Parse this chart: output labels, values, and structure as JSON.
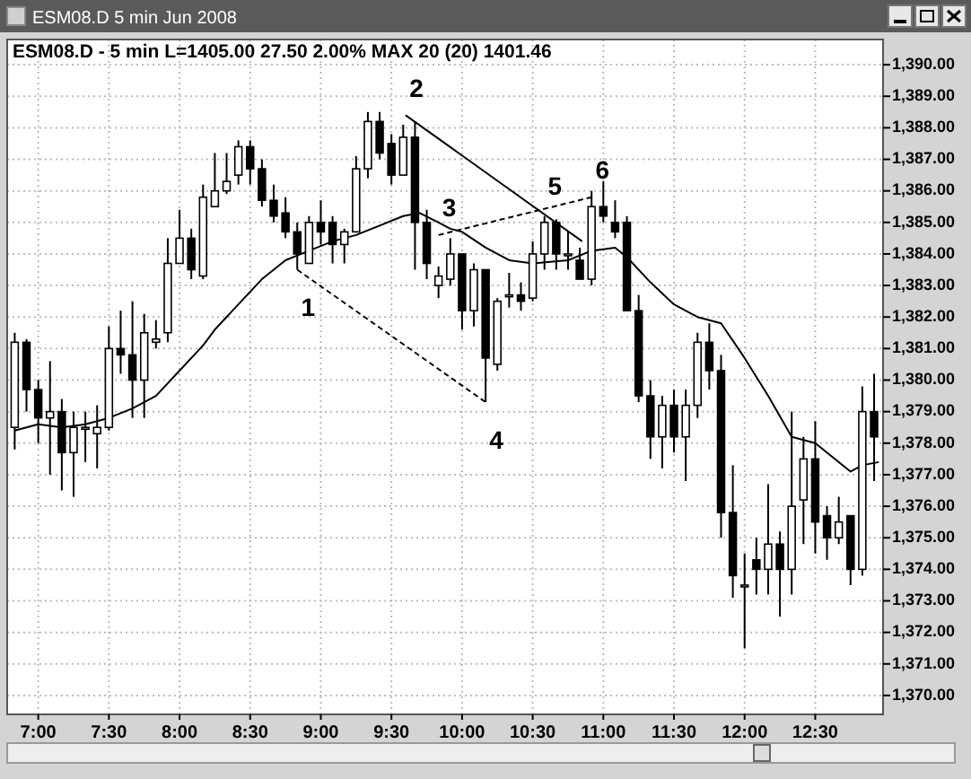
{
  "chart_data": {
    "type": "candlestick",
    "subtitle": "ESM08.D 5 min Jun 2008",
    "title": "ESM08.D - 5 min  L=1405.00  27.50  2.00%  MAX 20 (20)  1401.46",
    "x": [
      6.8333,
      6.9167,
      7,
      7.0833,
      7.1667,
      7.25,
      7.3333,
      7.4167,
      7.5,
      7.5833,
      7.6667,
      7.75,
      7.8333,
      7.9167,
      8,
      8.0833,
      8.1667,
      8.25,
      8.3333,
      8.4167,
      8.5,
      8.5833,
      8.6667,
      8.75,
      8.8333,
      8.9167,
      9,
      9.0833,
      9.1667,
      9.25,
      9.3333,
      9.4167,
      9.5,
      9.5833,
      9.6667,
      9.75,
      9.8333,
      9.9167,
      10,
      10.0833,
      10.1667,
      10.25,
      10.3333,
      10.4167,
      10.5,
      10.5833,
      10.6667,
      10.75,
      10.8333,
      10.9167,
      11,
      11.0833,
      11.1667,
      11.25,
      11.3333,
      11.4167,
      11.5,
      11.5833,
      11.6667,
      11.75,
      11.8333,
      11.9167,
      12,
      12.0833,
      12.1667,
      12.25,
      12.3333,
      12.4167,
      12.5,
      12.5833,
      12.6667,
      12.75,
      12.8333,
      12.9167
    ],
    "ohlc": [
      [
        1378.5,
        1381.5,
        1377.8,
        1381.2
      ],
      [
        1381.2,
        1381.3,
        1379.0,
        1379.7
      ],
      [
        1379.7,
        1380.0,
        1378.0,
        1378.8
      ],
      [
        1378.8,
        1380.6,
        1377.0,
        1379.0
      ],
      [
        1379.0,
        1379.4,
        1376.5,
        1377.7
      ],
      [
        1377.7,
        1379.0,
        1376.3,
        1378.5
      ],
      [
        1378.5,
        1379.0,
        1377.4,
        1378.5
      ],
      [
        1378.3,
        1379.2,
        1377.2,
        1378.5
      ],
      [
        1378.5,
        1381.7,
        1378.4,
        1381.0
      ],
      [
        1381.0,
        1382.2,
        1380.2,
        1380.8
      ],
      [
        1380.8,
        1382.5,
        1378.8,
        1380.0
      ],
      [
        1380.0,
        1382.1,
        1378.8,
        1381.5
      ],
      [
        1381.2,
        1381.9,
        1381.0,
        1381.3
      ],
      [
        1381.5,
        1384.5,
        1381.2,
        1383.7
      ],
      [
        1383.7,
        1385.4,
        1383.7,
        1384.5
      ],
      [
        1384.5,
        1384.8,
        1383.2,
        1383.5
      ],
      [
        1383.3,
        1386.2,
        1383.2,
        1385.8
      ],
      [
        1385.5,
        1387.2,
        1385.5,
        1386.0
      ],
      [
        1386.0,
        1387.2,
        1385.9,
        1386.3
      ],
      [
        1386.5,
        1387.6,
        1386.2,
        1387.4
      ],
      [
        1387.4,
        1387.6,
        1386.2,
        1386.7
      ],
      [
        1386.7,
        1387.0,
        1385.5,
        1385.7
      ],
      [
        1385.7,
        1386.2,
        1385.0,
        1385.2
      ],
      [
        1385.3,
        1385.8,
        1384.5,
        1384.7
      ],
      [
        1384.7,
        1385.0,
        1383.5,
        1384.0
      ],
      [
        1383.7,
        1385.2,
        1383.7,
        1385.0
      ],
      [
        1385.0,
        1385.7,
        1384.3,
        1384.7
      ],
      [
        1385.0,
        1385.2,
        1383.7,
        1384.3
      ],
      [
        1384.3,
        1384.8,
        1383.7,
        1384.7
      ],
      [
        1384.7,
        1387.1,
        1384.7,
        1386.7
      ],
      [
        1386.7,
        1388.5,
        1386.4,
        1388.2
      ],
      [
        1388.2,
        1388.5,
        1387.0,
        1387.2
      ],
      [
        1387.5,
        1387.8,
        1386.2,
        1386.5
      ],
      [
        1386.5,
        1388.1,
        1386.5,
        1387.7
      ],
      [
        1387.7,
        1388.2,
        1383.5,
        1385.0
      ],
      [
        1385.0,
        1385.4,
        1383.2,
        1383.7
      ],
      [
        1383.0,
        1383.6,
        1382.6,
        1383.3
      ],
      [
        1383.2,
        1384.5,
        1383.0,
        1384.0
      ],
      [
        1384.0,
        1384.0,
        1381.6,
        1382.2
      ],
      [
        1382.2,
        1383.7,
        1381.7,
        1383.5
      ],
      [
        1383.5,
        1383.5,
        1379.3,
        1380.7
      ],
      [
        1380.5,
        1382.6,
        1380.3,
        1382.5
      ],
      [
        1382.7,
        1383.4,
        1382.3,
        1382.7
      ],
      [
        1382.7,
        1383.1,
        1382.2,
        1382.5
      ],
      [
        1382.6,
        1384.4,
        1382.5,
        1384.0
      ],
      [
        1384.0,
        1385.2,
        1383.5,
        1385.0
      ],
      [
        1385.0,
        1385.1,
        1383.5,
        1384.0
      ],
      [
        1384.0,
        1384.7,
        1383.5,
        1384.0
      ],
      [
        1383.8,
        1384.2,
        1383.2,
        1383.2
      ],
      [
        1383.2,
        1386.0,
        1383.0,
        1385.5
      ],
      [
        1385.5,
        1386.3,
        1385.0,
        1385.2
      ],
      [
        1385.0,
        1385.7,
        1384.5,
        1384.7
      ],
      [
        1385.0,
        1385.2,
        1382.2,
        1382.2
      ],
      [
        1382.2,
        1382.7,
        1379.3,
        1379.5
      ],
      [
        1379.5,
        1380.0,
        1377.5,
        1378.2
      ],
      [
        1378.2,
        1379.5,
        1377.2,
        1379.2
      ],
      [
        1379.2,
        1379.7,
        1377.7,
        1378.2
      ],
      [
        1378.2,
        1379.7,
        1376.8,
        1379.2
      ],
      [
        1379.2,
        1381.5,
        1378.8,
        1381.2
      ],
      [
        1381.2,
        1381.8,
        1379.7,
        1380.3
      ],
      [
        1380.3,
        1380.8,
        1375.0,
        1375.8
      ],
      [
        1375.8,
        1377.3,
        1373.1,
        1373.8
      ],
      [
        1373.5,
        1374.5,
        1371.5,
        1373.5
      ],
      [
        1374.3,
        1375.0,
        1373.2,
        1374.0
      ],
      [
        1374.0,
        1376.7,
        1373.2,
        1374.8
      ],
      [
        1374.8,
        1375.2,
        1372.5,
        1374.0
      ],
      [
        1374.0,
        1379.0,
        1373.2,
        1376.0
      ],
      [
        1376.2,
        1378.2,
        1374.8,
        1377.5
      ],
      [
        1377.5,
        1378.7,
        1374.5,
        1375.5
      ],
      [
        1375.7,
        1376.0,
        1374.3,
        1375.0
      ],
      [
        1375.0,
        1376.3,
        1374.8,
        1375.5
      ],
      [
        1375.7,
        1375.7,
        1373.5,
        1374.0
      ],
      [
        1374.0,
        1379.8,
        1373.8,
        1379.0
      ],
      [
        1379.0,
        1380.2,
        1376.8,
        1378.2
      ]
    ],
    "series": [
      {
        "type": "line",
        "color": "#000000",
        "x": [
          6.8333,
          7,
          7.1667,
          7.3333,
          7.5,
          7.6667,
          7.8333,
          8,
          8.1667,
          8.25,
          8.4167,
          8.5833,
          8.75,
          8.9167,
          9.0833,
          9.25,
          9.4167,
          9.5833,
          9.7,
          9.8333,
          9.9167,
          10,
          10.1667,
          10.3333,
          10.5,
          10.75,
          10.9167,
          11.0833,
          11.1667,
          11.3333,
          11.5,
          11.6667,
          11.8333,
          12,
          12.1667,
          12.3333,
          12.4167,
          12.5,
          12.75,
          12.8333,
          12.95
        ],
        "values": [
          1378.4,
          1378.6,
          1378.5,
          1378.6,
          1378.8,
          1379.1,
          1379.5,
          1380.3,
          1381.1,
          1381.6,
          1382.4,
          1383.2,
          1383.8,
          1384.1,
          1384.4,
          1384.6,
          1384.9,
          1385.2,
          1385.3,
          1385.0,
          1384.8,
          1384.7,
          1384.2,
          1383.8,
          1383.7,
          1383.8,
          1384.1,
          1384.2,
          1383.9,
          1383.1,
          1382.4,
          1382.0,
          1381.8,
          1380.7,
          1379.5,
          1378.2,
          1378.1,
          1378.0,
          1377.1,
          1377.3,
          1377.4
        ]
      },
      {
        "type": "line",
        "color": "#000000",
        "line_style": "solid",
        "x": [
          9.6,
          10.85
        ],
        "values": [
          1388.4,
          1384.4
        ]
      },
      {
        "type": "line",
        "color": "#000000",
        "line_style": "dashed",
        "x": [
          8.8333,
          10.1667
        ],
        "values": [
          1383.5,
          1379.3
        ]
      },
      {
        "type": "line",
        "color": "#000000",
        "line_style": "dashed",
        "x": [
          9.8333,
          10.9167
        ],
        "values": [
          1384.6,
          1385.8
        ]
      }
    ],
    "annotations": [
      {
        "text": "1",
        "x": 8.8333,
        "y": 1383.5
      },
      {
        "text": "2",
        "x": 9.6,
        "y": 1388.4
      },
      {
        "text": "3",
        "x": 9.8333,
        "y": 1384.6
      },
      {
        "text": "4",
        "x": 10.1667,
        "y": 1379.3
      },
      {
        "text": "5",
        "x": 10.58,
        "y": 1385.3
      },
      {
        "text": "6",
        "x": 10.9167,
        "y": 1385.8
      }
    ],
    "xlim": [
      6.78,
      12.98
    ],
    "xticks": [
      {
        "value": 7,
        "label": "7:00"
      },
      {
        "value": 7.5,
        "label": "7:30"
      },
      {
        "value": 8,
        "label": "8:00"
      },
      {
        "value": 8.5,
        "label": "8:30"
      },
      {
        "value": 9,
        "label": "9:00"
      },
      {
        "value": 9.5,
        "label": "9:30"
      },
      {
        "value": 10,
        "label": "10:00"
      },
      {
        "value": 10.5,
        "label": "10:30"
      },
      {
        "value": 11,
        "label": "11:00"
      },
      {
        "value": 11.5,
        "label": "11:30"
      },
      {
        "value": 12,
        "label": "12:00"
      },
      {
        "value": 12.5,
        "label": "12:30"
      }
    ],
    "ylim": [
      1369.4,
      1390.8
    ],
    "yticks": [
      {
        "value": 1370,
        "label": "1,370.00"
      },
      {
        "value": 1371,
        "label": "1,371.00"
      },
      {
        "value": 1372,
        "label": "1,372.00"
      },
      {
        "value": 1373,
        "label": "1,373.00"
      },
      {
        "value": 1374,
        "label": "1,374.00"
      },
      {
        "value": 1375,
        "label": "1,375.00"
      },
      {
        "value": 1376,
        "label": "1,376.00"
      },
      {
        "value": 1377,
        "label": "1,377.00"
      },
      {
        "value": 1378,
        "label": "1,378.00"
      },
      {
        "value": 1379,
        "label": "1,379.00"
      },
      {
        "value": 1380,
        "label": "1,380.00"
      },
      {
        "value": 1381,
        "label": "1,381.00"
      },
      {
        "value": 1382,
        "label": "1,382.00"
      },
      {
        "value": 1383,
        "label": "1,383.00"
      },
      {
        "value": 1384,
        "label": "1,384.00"
      },
      {
        "value": 1385,
        "label": "1,385.00"
      },
      {
        "value": 1386,
        "label": "1,386.00"
      },
      {
        "value": 1387,
        "label": "1,387.00"
      },
      {
        "value": 1388,
        "label": "1,388.00"
      },
      {
        "value": 1389,
        "label": "1,389.00"
      },
      {
        "value": 1390,
        "label": "1,390.00"
      }
    ],
    "grid": true
  }
}
